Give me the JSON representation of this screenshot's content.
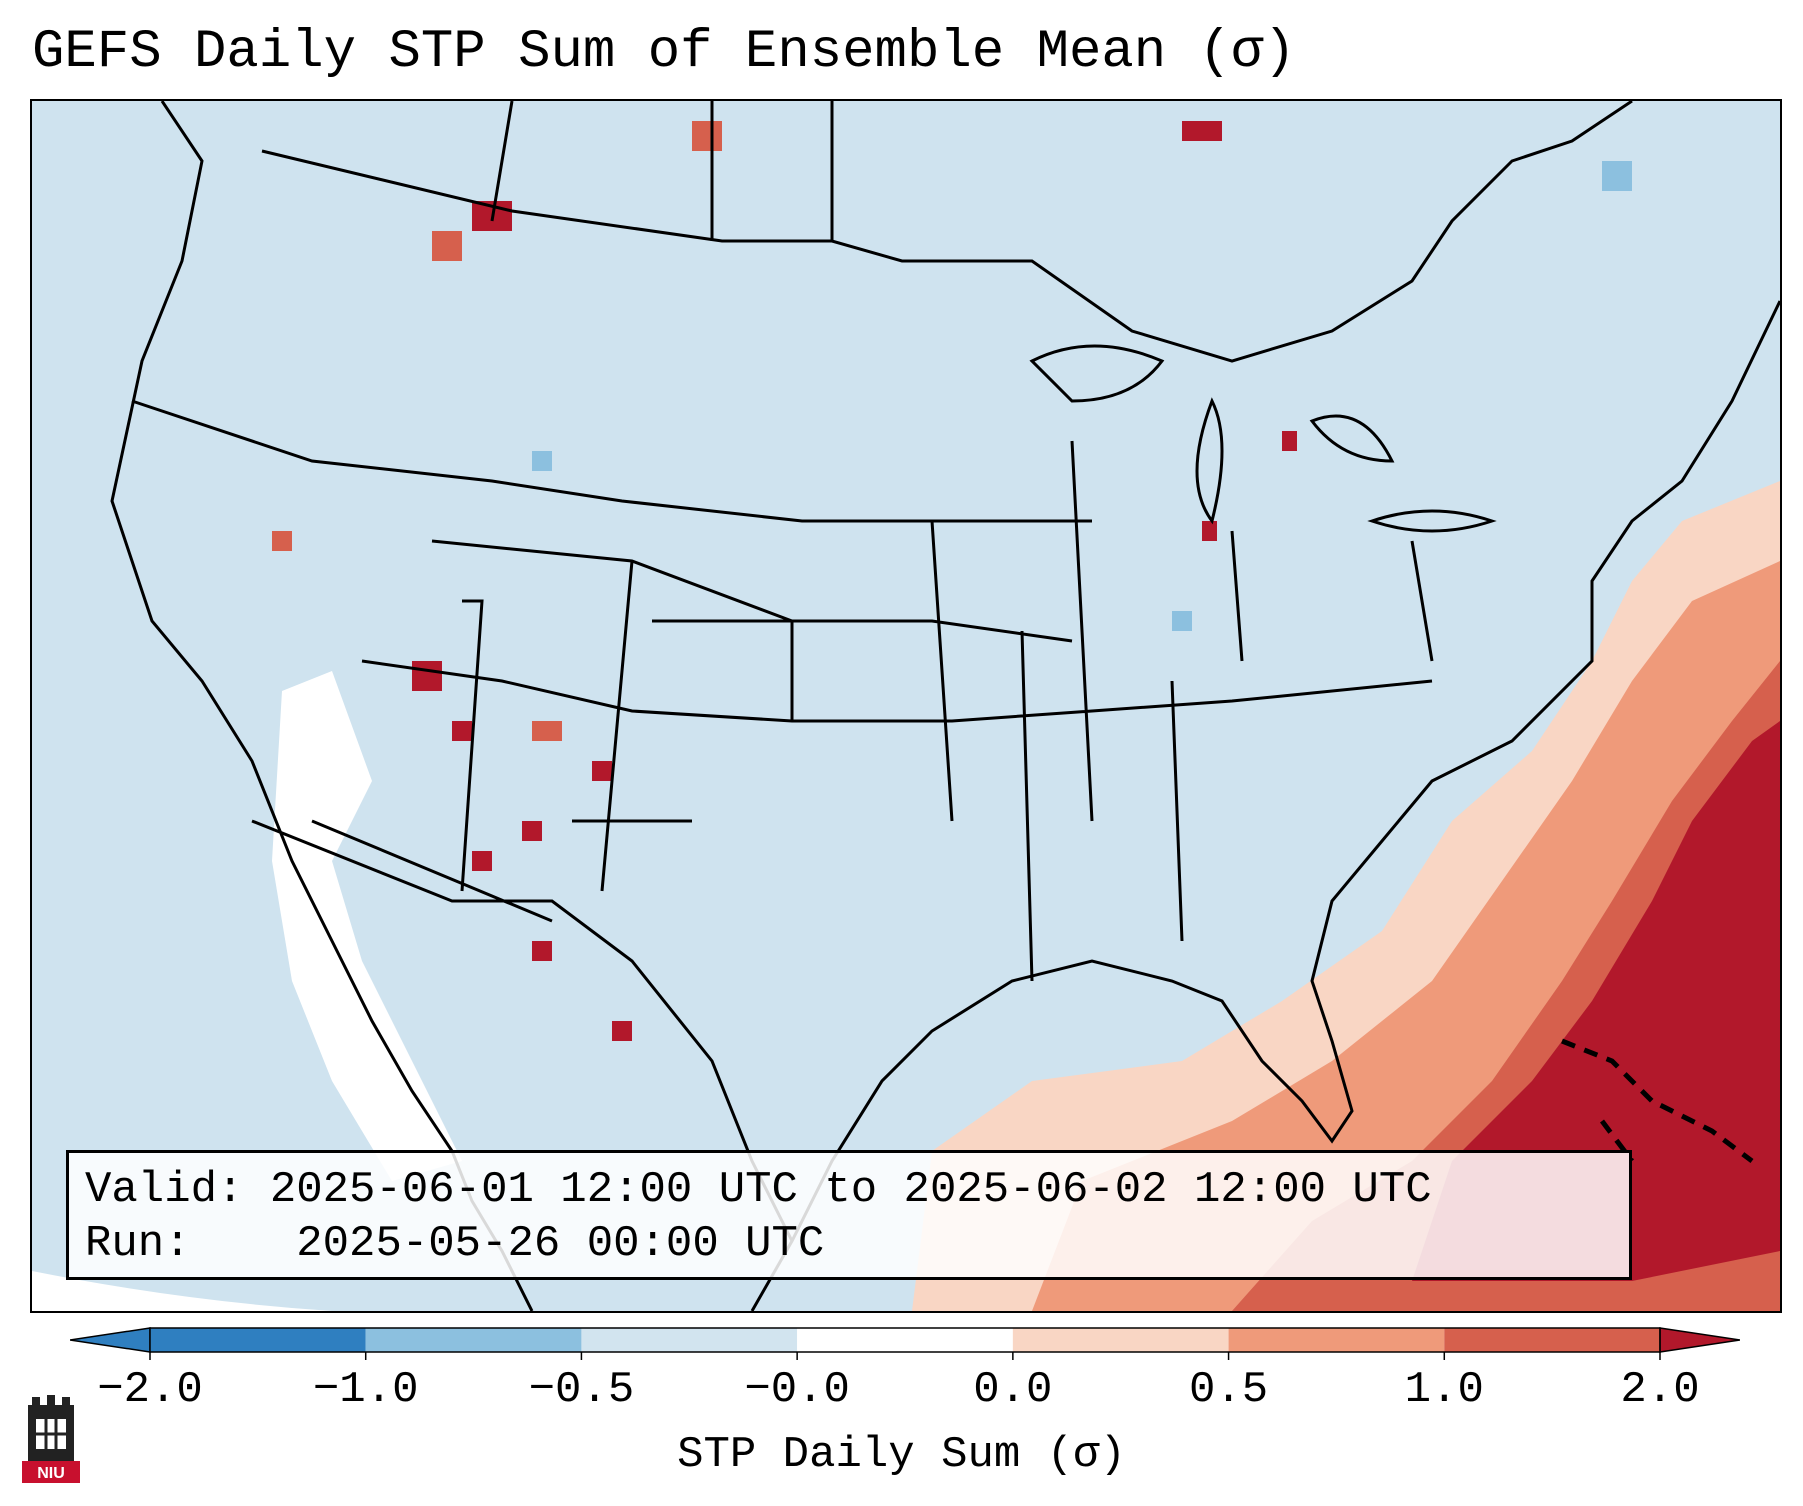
{
  "title": "GEFS Daily STP Sum of Ensemble Mean (σ)",
  "valid_label": "Valid:",
  "valid_value": "2025-06-01 12:00 UTC to 2025-06-02 12:00 UTC",
  "run_label": "Run:",
  "run_value": "2025-05-26 00:00 UTC",
  "colorbar": {
    "label": "STP Daily Sum (σ)",
    "ticks": [
      "−2.0",
      "−1.0",
      "−0.5",
      "−0.0",
      "0.0",
      "0.5",
      "1.0",
      "2.0"
    ],
    "colors": [
      "#2f7fc0",
      "#8cc0df",
      "#d2e4ef",
      "#ffffff",
      "#f9d6c4",
      "#ef9a7a",
      "#d6604d",
      "#b2182b"
    ],
    "extend": "both"
  },
  "logo_text": "NIU",
  "icons": [
    "niu-logo-icon"
  ],
  "map": {
    "region": "CONUS",
    "background_color": "#cfe3ef"
  }
}
